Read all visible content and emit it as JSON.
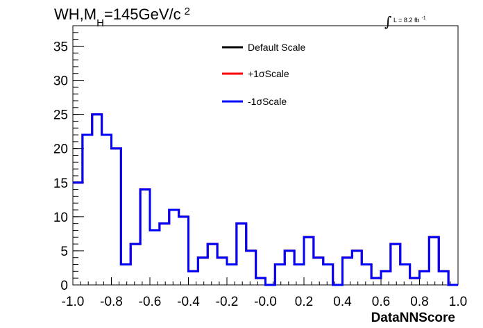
{
  "chart_data": {
    "type": "histogram",
    "title": {
      "main": "WH,M",
      "sub": "H",
      "rest": "=145GeV/c",
      "sup": "2"
    },
    "luminosity": {
      "text": "L = 8.2 fb",
      "sup": "-1"
    },
    "xlabel": "DataNNScore",
    "ylabel": "",
    "xlim": [
      -1.0,
      1.0
    ],
    "ylim": [
      0,
      38
    ],
    "x_ticks": [
      -1.0,
      -0.8,
      -0.6,
      -0.4,
      -0.2,
      0.0,
      0.2,
      0.4,
      0.6,
      0.8,
      1.0
    ],
    "x_tick_labels": [
      "-1.0",
      "-0.8",
      "-0.6",
      "-0.4",
      "-0.2",
      "-0.0",
      "0.2",
      "0.4",
      "0.6",
      "0.8",
      "1.0"
    ],
    "y_ticks": [
      0,
      5,
      10,
      15,
      20,
      25,
      30,
      35
    ],
    "y_tick_labels": [
      "0",
      "5",
      "10",
      "15",
      "20",
      "25",
      "30",
      "35"
    ],
    "bin_edges_start": -1.0,
    "bin_width": 0.05,
    "series": [
      {
        "name": "Default Scale",
        "color": "#000000",
        "values": [
          15,
          22,
          25,
          22,
          20,
          3,
          6,
          14,
          8,
          9,
          11,
          10,
          2,
          4,
          6,
          4,
          3,
          9,
          5,
          1,
          0,
          3,
          5,
          3,
          7,
          4,
          3,
          0,
          4,
          5,
          3,
          1,
          2,
          6,
          3,
          1,
          2,
          7,
          2,
          0
        ]
      },
      {
        "name": "+1σScale",
        "color": "#ff0000",
        "values": [
          15,
          22,
          25,
          22,
          20,
          3,
          6,
          14,
          8,
          9,
          11,
          10,
          2,
          4,
          6,
          4,
          3,
          9,
          5,
          1,
          0,
          3,
          5,
          3,
          7,
          4,
          3,
          0,
          4,
          5,
          3,
          1,
          2,
          6,
          3,
          1,
          2,
          7,
          2,
          0
        ]
      },
      {
        "name": "-1σScale",
        "color": "#0000ff",
        "values": [
          15,
          22,
          25,
          22,
          20,
          3,
          6,
          14,
          8,
          9,
          11,
          10,
          2,
          4,
          6,
          4,
          3,
          9,
          5,
          1,
          0,
          3,
          5,
          3,
          7,
          4,
          3,
          0,
          4,
          5,
          3,
          1,
          2,
          6,
          3,
          1,
          2,
          7,
          2,
          0
        ]
      }
    ],
    "legend_position": "top-center",
    "grid": false
  }
}
